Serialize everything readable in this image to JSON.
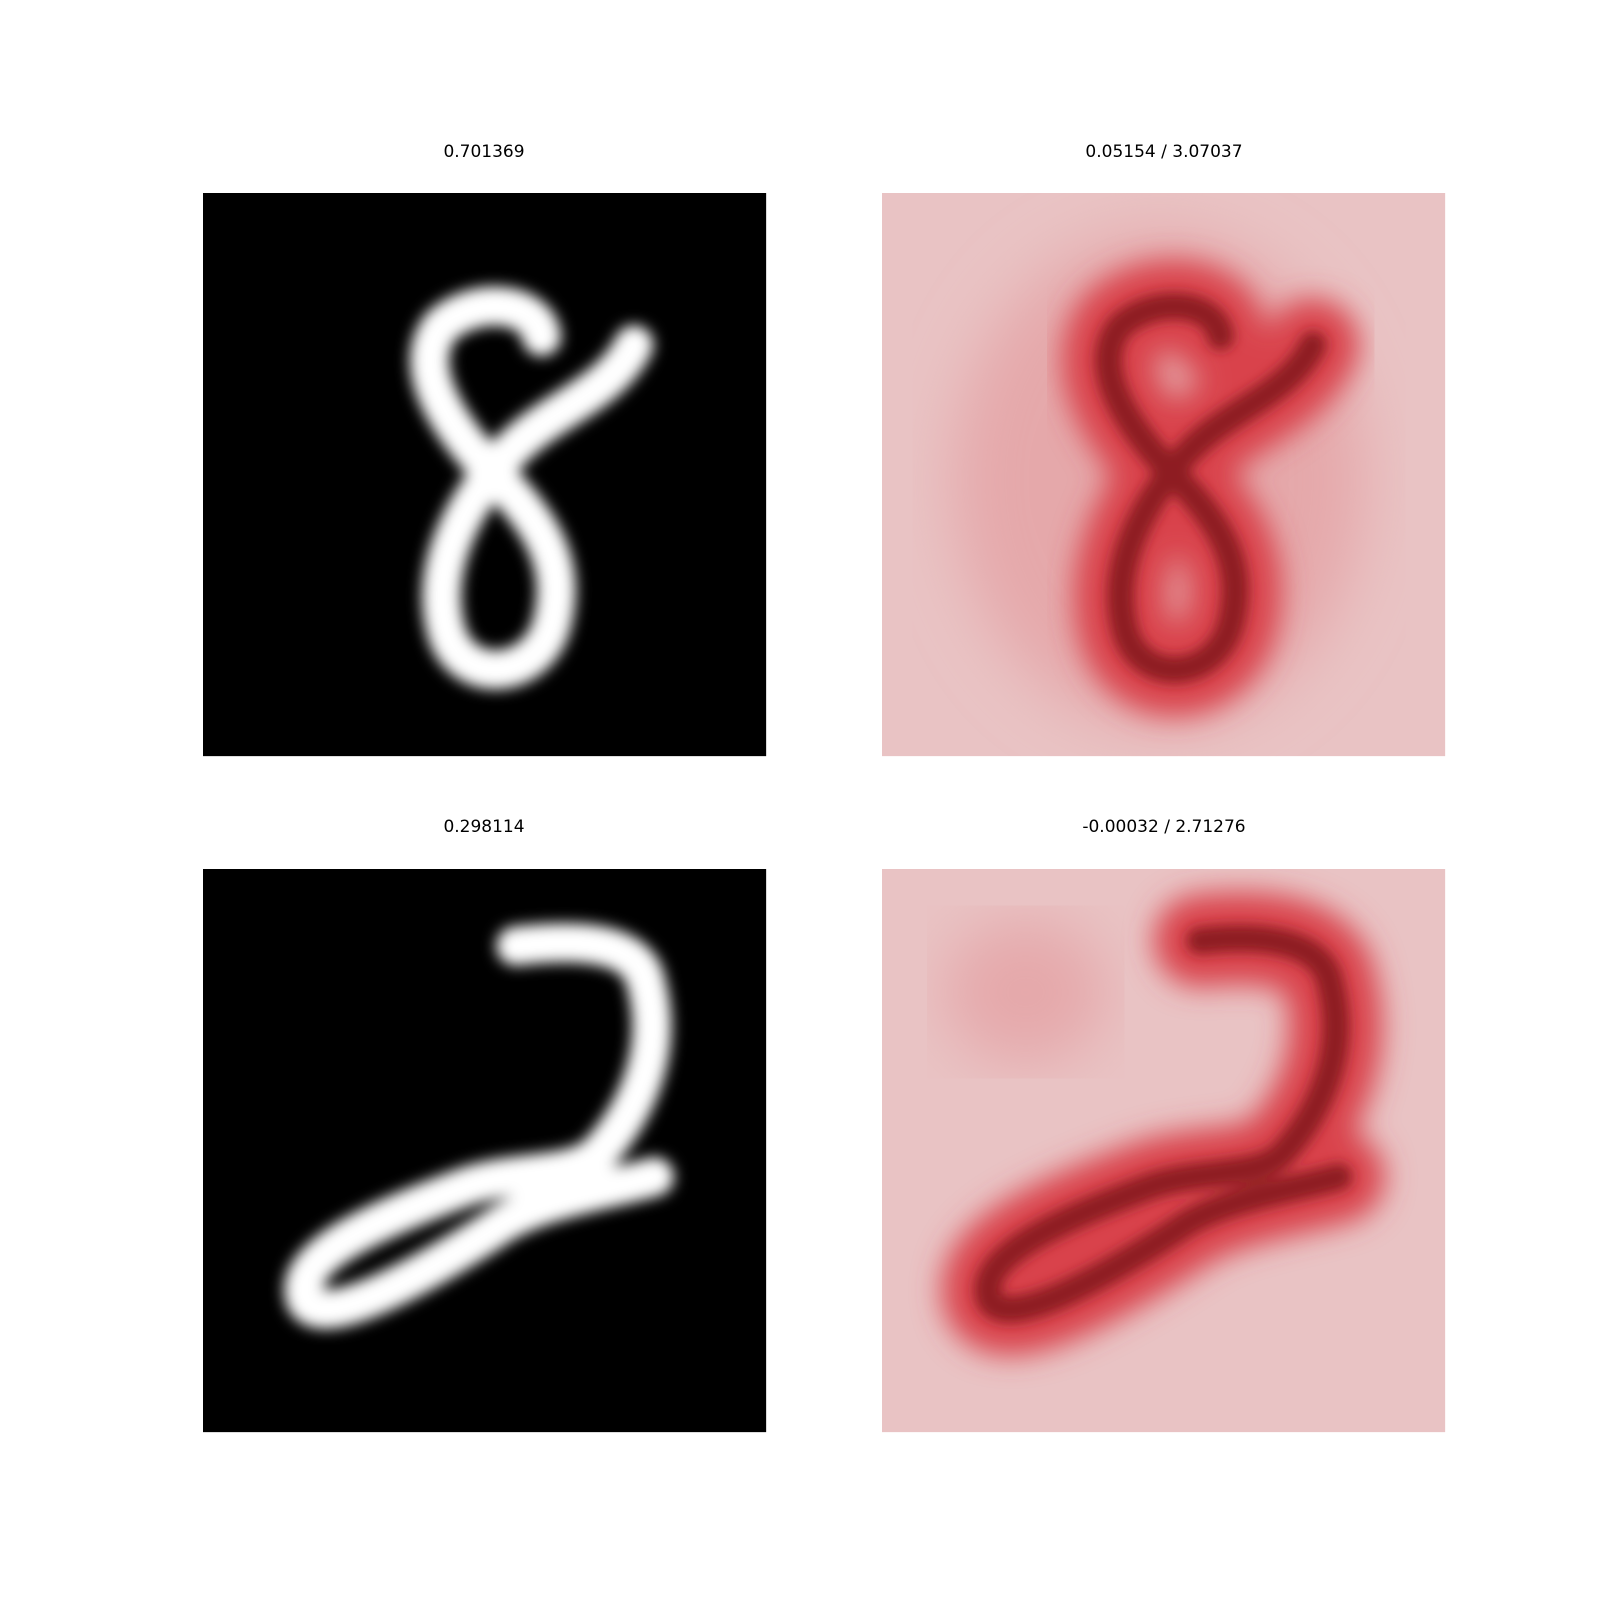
{
  "panels": [
    {
      "title": "0.701369"
    },
    {
      "title": "0.05154 / 3.07037"
    },
    {
      "title": "0.298114"
    },
    {
      "title": "-0.00032 / 2.71276"
    }
  ]
}
